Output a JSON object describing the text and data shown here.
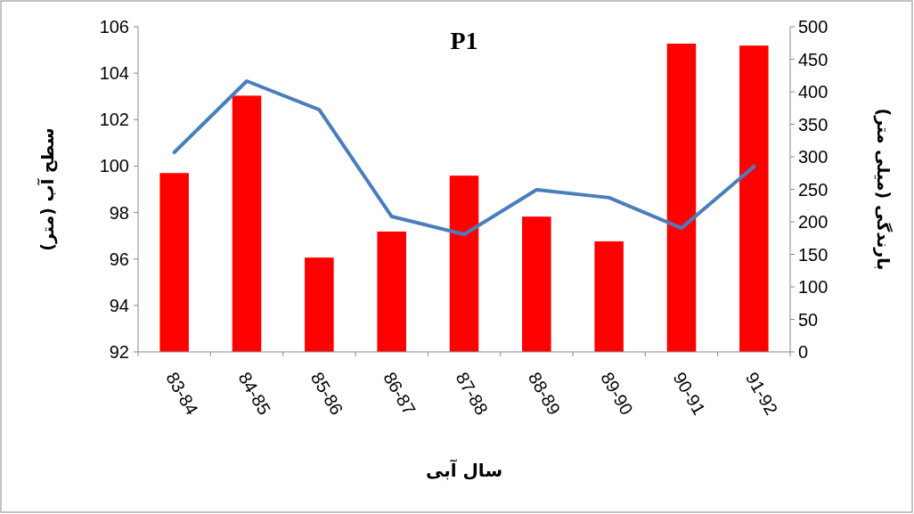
{
  "chart_data": {
    "type": "bar",
    "title": "P1",
    "xlabel": "سال آبی",
    "ylabel": "سطح آب (متر)",
    "y2label": "بارندگی (میلی متر)",
    "categories": [
      "83-84",
      "84-85",
      "85-86",
      "86-87",
      "87-88",
      "88-89",
      "89-90",
      "90-91",
      "91-92"
    ],
    "series": [
      {
        "axis": "y2",
        "color": "#ff0000",
        "values": [
          275,
          394,
          145,
          185,
          271,
          208,
          170,
          474,
          471
        ]
      },
      {
        "type": "line",
        "axis": "y",
        "color": "#4a7ebb",
        "values": [
          100.59,
          103.66,
          102.43,
          97.83,
          97.06,
          98.98,
          98.64,
          97.33,
          99.98
        ]
      }
    ],
    "ylim": [
      92,
      106
    ],
    "yticks": [
      92,
      94,
      96,
      98,
      100,
      102,
      104,
      106
    ],
    "y2lim": [
      0,
      500
    ],
    "y2ticks": [
      0,
      50,
      100,
      150,
      200,
      250,
      300,
      350,
      400,
      450,
      500
    ]
  }
}
